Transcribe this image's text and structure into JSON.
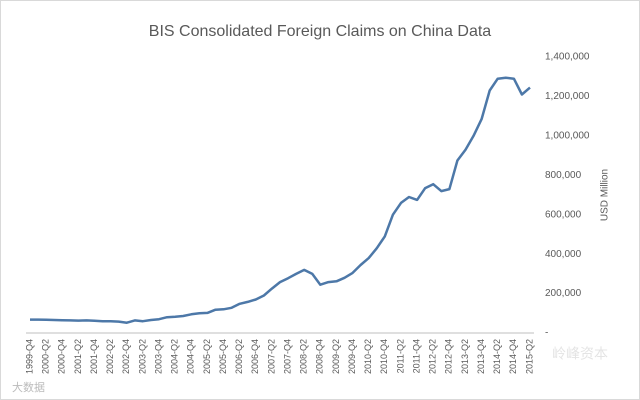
{
  "chart_data": {
    "type": "line",
    "title": "BIS Consolidated Foreign Claims on China Data",
    "y_label": "USD Million",
    "watermarks": [
      "大数据",
      "岭峰资本"
    ],
    "categories": [
      "1999-Q4",
      null,
      "2000-Q2",
      null,
      "2000-Q4",
      null,
      "2001-Q2",
      null,
      "2001-Q4",
      null,
      "2002-Q2",
      null,
      "2002-Q4",
      null,
      "2003-Q2",
      null,
      "2003-Q4",
      null,
      "2004-Q2",
      null,
      "2004-Q4",
      null,
      "2005-Q2",
      null,
      "2005-Q4",
      null,
      "2006-Q2",
      null,
      "2006-Q4",
      null,
      "2007-Q2",
      null,
      "2007-Q4",
      null,
      "2008-Q2",
      null,
      "2008-Q4",
      null,
      "2009-Q2",
      null,
      "2009-Q4",
      null,
      "2010-Q2",
      null,
      "2010-Q4",
      null,
      "2011-Q2",
      null,
      "2011-Q4",
      null,
      "2012-Q2",
      null,
      "2012-Q4",
      null,
      "2013-Q2",
      null,
      "2013-Q4",
      null,
      "2014-Q2",
      null,
      "2014-Q4",
      null,
      "2015-Q2"
    ],
    "series": [
      {
        "name": "Foreign Claims",
        "color": "#4d78a8",
        "values": [
          68000,
          68000,
          67000,
          66000,
          65000,
          64000,
          63000,
          64000,
          62000,
          60000,
          60000,
          58000,
          52000,
          64000,
          60000,
          66000,
          70000,
          80000,
          82000,
          86000,
          95000,
          100000,
          102000,
          118000,
          120000,
          128000,
          148000,
          158000,
          170000,
          190000,
          225000,
          258000,
          278000,
          300000,
          320000,
          300000,
          245000,
          258000,
          262000,
          280000,
          305000,
          345000,
          380000,
          430000,
          490000,
          600000,
          660000,
          690000,
          675000,
          735000,
          755000,
          720000,
          730000,
          875000,
          930000,
          1000000,
          1085000,
          1230000,
          1290000,
          1295000,
          1290000,
          1210000,
          1245000
        ]
      }
    ],
    "ylim": [
      0,
      1400000
    ],
    "yticks": [
      {
        "value": 0,
        "label": "-"
      },
      {
        "value": 200000,
        "label": "200,000"
      },
      {
        "value": 400000,
        "label": "400,000"
      },
      {
        "value": 600000,
        "label": "600,000"
      },
      {
        "value": 800000,
        "label": "800,000"
      },
      {
        "value": 1000000,
        "label": "1,000,000"
      },
      {
        "value": 1200000,
        "label": "1,200,000"
      },
      {
        "value": 1400000,
        "label": "1,400,000"
      }
    ],
    "grid": false
  }
}
